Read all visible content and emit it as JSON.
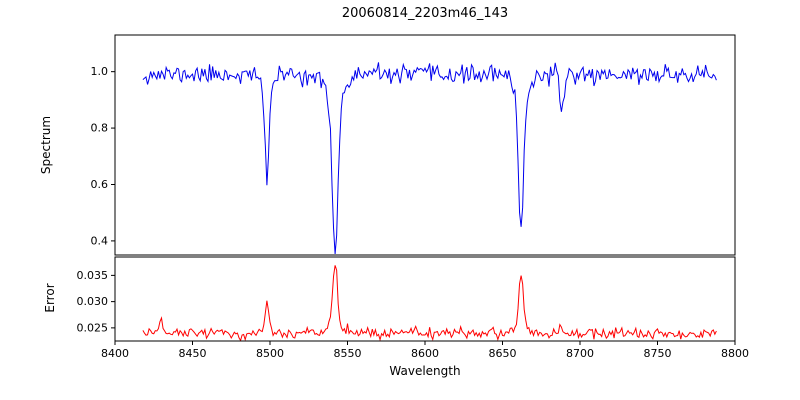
{
  "chart_data": {
    "type": "line",
    "title": "20060814_2203m46_143",
    "xlabel": "Wavelength",
    "grid": false,
    "legend": "none",
    "x_range": [
      8400,
      8800
    ],
    "x_ticks": [
      8400,
      8450,
      8500,
      8550,
      8600,
      8650,
      8700,
      8750,
      8800
    ],
    "x_tick_labels": [
      "8400",
      "8450",
      "8500",
      "8550",
      "8600",
      "8650",
      "8700",
      "8750",
      "8800"
    ],
    "data_x_range": [
      8418,
      8788
    ],
    "panels": [
      {
        "name": "spectrum",
        "ylabel": "Spectrum",
        "ylim": [
          0.35,
          1.13
        ],
        "y_ticks": [
          0.4,
          0.6,
          0.8,
          1.0
        ],
        "y_tick_labels": [
          "0.4",
          "0.6",
          "0.8",
          "1.0"
        ],
        "color": "#0000ee",
        "baseline": 0.99,
        "noise_sigma": 0.016,
        "features": [
          {
            "center": 8498,
            "depth": 0.34,
            "sigma": 1.2
          },
          {
            "center": 8498,
            "depth": 0.05,
            "sigma": 4
          },
          {
            "center": 8542,
            "depth": 0.52,
            "sigma": 1.8
          },
          {
            "center": 8542,
            "depth": 0.1,
            "sigma": 6
          },
          {
            "center": 8662,
            "depth": 0.47,
            "sigma": 1.6
          },
          {
            "center": 8662,
            "depth": 0.08,
            "sigma": 5
          },
          {
            "center": 8688,
            "depth": 0.12,
            "sigma": 1.5
          }
        ]
      },
      {
        "name": "error",
        "ylabel": "Error",
        "ylim": [
          0.0225,
          0.0385
        ],
        "y_ticks": [
          0.025,
          0.03,
          0.035
        ],
        "y_tick_labels": [
          "0.025",
          "0.030",
          "0.035"
        ],
        "color": "#ff0000",
        "baseline": 0.024,
        "noise_sigma": 0.0005,
        "features": [
          {
            "center": 8430,
            "depth": -0.0022,
            "sigma": 1.5
          },
          {
            "center": 8466,
            "depth": -0.0008,
            "sigma": 1.2
          },
          {
            "center": 8498,
            "depth": -0.0062,
            "sigma": 1.2
          },
          {
            "center": 8542,
            "depth": -0.0115,
            "sigma": 1.5
          },
          {
            "center": 8542,
            "depth": -0.0015,
            "sigma": 5
          },
          {
            "center": 8662,
            "depth": -0.0105,
            "sigma": 1.4
          },
          {
            "center": 8662,
            "depth": -0.0015,
            "sigma": 4
          },
          {
            "center": 8688,
            "depth": -0.001,
            "sigma": 1.5
          }
        ]
      }
    ]
  }
}
